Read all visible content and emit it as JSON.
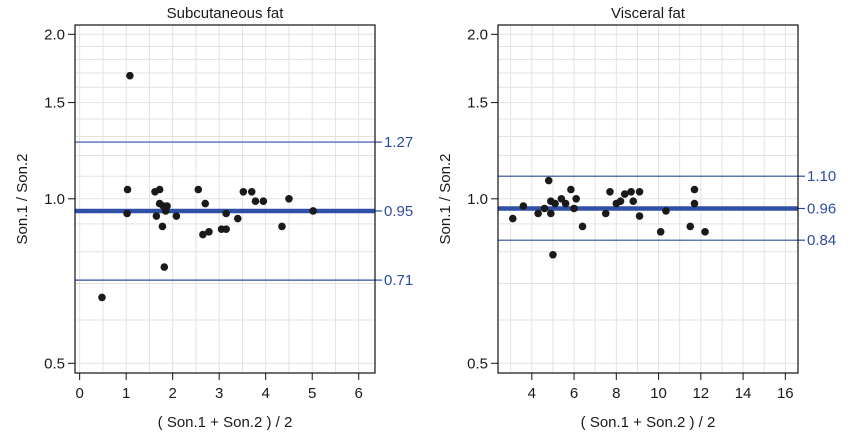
{
  "chart_data": [
    {
      "type": "scatter",
      "title": "Subcutaneous fat",
      "xlabel": "( Son.1 + Son.2 ) / 2",
      "ylabel": "Son.1 / Son.2",
      "xlim": [
        -0.1,
        6.35
      ],
      "ylim": [
        0.48,
        2.08
      ],
      "y_scale": "log",
      "xticks": [
        0,
        1,
        2,
        3,
        4,
        5,
        6
      ],
      "yticks": [
        0.5,
        1.0,
        1.5,
        2.0
      ],
      "yticklabels": [
        "0.5",
        "1.0",
        "1.5",
        "2.0"
      ],
      "grid": true,
      "points": [
        {
          "x": 0.48,
          "y": 0.66
        },
        {
          "x": 1.02,
          "y": 0.94
        },
        {
          "x": 1.03,
          "y": 1.04
        },
        {
          "x": 1.08,
          "y": 1.68
        },
        {
          "x": 1.62,
          "y": 1.03
        },
        {
          "x": 1.65,
          "y": 0.93
        },
        {
          "x": 1.72,
          "y": 1.04
        },
        {
          "x": 1.72,
          "y": 0.98
        },
        {
          "x": 1.78,
          "y": 0.89
        },
        {
          "x": 1.8,
          "y": 0.97
        },
        {
          "x": 1.82,
          "y": 0.75
        },
        {
          "x": 1.85,
          "y": 0.95
        },
        {
          "x": 1.88,
          "y": 0.97
        },
        {
          "x": 2.08,
          "y": 0.93
        },
        {
          "x": 2.55,
          "y": 1.04
        },
        {
          "x": 2.65,
          "y": 0.86
        },
        {
          "x": 2.7,
          "y": 0.98
        },
        {
          "x": 2.78,
          "y": 0.87
        },
        {
          "x": 3.05,
          "y": 0.88
        },
        {
          "x": 3.15,
          "y": 0.88
        },
        {
          "x": 3.15,
          "y": 0.94
        },
        {
          "x": 3.4,
          "y": 0.92
        },
        {
          "x": 3.52,
          "y": 1.03
        },
        {
          "x": 3.7,
          "y": 1.03
        },
        {
          "x": 3.78,
          "y": 0.99
        },
        {
          "x": 3.95,
          "y": 0.99
        },
        {
          "x": 4.35,
          "y": 0.89
        },
        {
          "x": 4.5,
          "y": 1.0
        },
        {
          "x": 5.02,
          "y": 0.95
        }
      ],
      "reference_lines": [
        {
          "y": 1.27,
          "label": "1.27",
          "kind": "limit"
        },
        {
          "y": 0.95,
          "label": "0.95",
          "kind": "mean"
        },
        {
          "y": 0.71,
          "label": "0.71",
          "kind": "limit"
        }
      ]
    },
    {
      "type": "scatter",
      "title": "Visceral fat",
      "xlabel": "( Son.1 + Son.2 ) / 2",
      "ylabel": "Son.1 / Son.2",
      "xlim": [
        2.4,
        16.6
      ],
      "ylim": [
        0.48,
        2.08
      ],
      "y_scale": "log",
      "xticks": [
        4,
        6,
        8,
        10,
        12,
        14,
        16
      ],
      "yticks": [
        0.5,
        1.0,
        1.5,
        2.0
      ],
      "yticklabels": [
        "0.5",
        "1.0",
        "1.5",
        "2.0"
      ],
      "grid": true,
      "points": [
        {
          "x": 3.1,
          "y": 0.92
        },
        {
          "x": 3.6,
          "y": 0.97
        },
        {
          "x": 4.3,
          "y": 0.94
        },
        {
          "x": 4.6,
          "y": 0.96
        },
        {
          "x": 4.8,
          "y": 1.08
        },
        {
          "x": 4.9,
          "y": 0.94
        },
        {
          "x": 4.9,
          "y": 0.99
        },
        {
          "x": 5.1,
          "y": 0.98
        },
        {
          "x": 5.0,
          "y": 0.79
        },
        {
          "x": 5.4,
          "y": 1.0
        },
        {
          "x": 5.6,
          "y": 0.98
        },
        {
          "x": 5.85,
          "y": 1.04
        },
        {
          "x": 6.0,
          "y": 0.96
        },
        {
          "x": 6.1,
          "y": 1.0
        },
        {
          "x": 6.4,
          "y": 0.89
        },
        {
          "x": 7.5,
          "y": 0.94
        },
        {
          "x": 7.7,
          "y": 1.03
        },
        {
          "x": 8.0,
          "y": 0.98
        },
        {
          "x": 8.2,
          "y": 0.99
        },
        {
          "x": 8.4,
          "y": 1.02
        },
        {
          "x": 8.7,
          "y": 1.03
        },
        {
          "x": 8.8,
          "y": 0.99
        },
        {
          "x": 9.1,
          "y": 1.03
        },
        {
          "x": 9.1,
          "y": 0.93
        },
        {
          "x": 10.1,
          "y": 0.87
        },
        {
          "x": 10.35,
          "y": 0.95
        },
        {
          "x": 11.5,
          "y": 0.89
        },
        {
          "x": 11.7,
          "y": 1.04
        },
        {
          "x": 11.7,
          "y": 0.98
        },
        {
          "x": 12.2,
          "y": 0.87
        }
      ],
      "reference_lines": [
        {
          "y": 1.1,
          "label": "1.10",
          "kind": "limit"
        },
        {
          "y": 0.96,
          "label": "0.96",
          "kind": "mean"
        },
        {
          "y": 0.84,
          "label": "0.84",
          "kind": "limit"
        }
      ]
    }
  ]
}
